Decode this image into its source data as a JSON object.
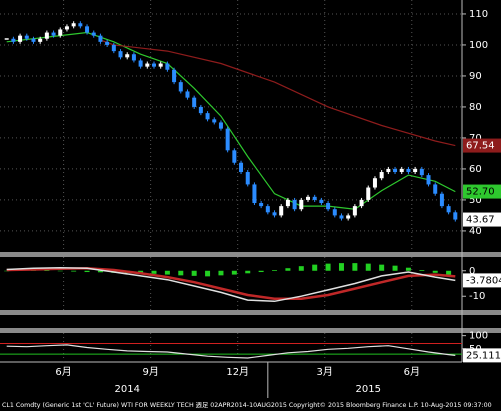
{
  "chart_data": [
    {
      "type": "candlestick",
      "values": [
        102,
        101,
        103,
        102,
        101,
        102,
        104,
        103,
        105,
        106,
        107,
        106,
        104,
        103,
        101,
        100,
        98,
        96,
        97,
        95,
        93,
        94,
        93,
        94,
        92,
        88,
        85,
        83,
        80,
        78,
        76,
        75,
        73,
        66,
        62,
        59,
        55,
        49,
        48,
        46,
        45,
        48,
        50,
        47,
        50,
        51,
        50,
        49,
        47,
        45,
        44,
        45,
        48,
        50,
        54,
        57,
        59,
        60,
        59,
        60,
        59,
        60,
        58,
        55,
        52,
        48,
        46,
        43.67
      ],
      "up_color": "#ffffff",
      "down_color": "#2b8cff",
      "lines": [
        {
          "color": "#2ec82e",
          "x": [
            0,
            4,
            8,
            12,
            16,
            20,
            24,
            28,
            32,
            36,
            40,
            44,
            48,
            52,
            56,
            60,
            64,
            67
          ],
          "values": [
            101,
            102,
            103,
            104,
            101,
            97,
            94,
            86,
            77,
            64,
            52,
            48,
            48,
            47,
            53,
            58,
            56,
            52.7
          ],
          "value_labels": [
            null,
            null,
            null,
            null,
            null,
            null,
            null,
            null,
            null,
            null,
            null,
            null,
            null,
            null,
            null,
            null,
            null,
            "52.70"
          ]
        },
        {
          "color": "#8e1c1c",
          "x": [
            14,
            16,
            24,
            32,
            40,
            48,
            56,
            64,
            67
          ],
          "values": [
            101.6,
            100,
            98,
            94,
            88,
            80,
            74,
            69,
            67.54
          ]
        }
      ],
      "ylim": [
        33.2,
        114.5
      ],
      "yticks": [
        40,
        50,
        60,
        70,
        80,
        90,
        100,
        110
      ],
      "grid": true
    },
    {
      "type": "macd",
      "histogram": {
        "color": "#22d022",
        "x": [
          0,
          2,
          4,
          6,
          8,
          10,
          12,
          14,
          16,
          18,
          20,
          22,
          24,
          26,
          28,
          30,
          32,
          34,
          36,
          38,
          40,
          42,
          44,
          46,
          48,
          50,
          52,
          54,
          56,
          58,
          60,
          62,
          64,
          66
        ],
        "values": [
          0,
          0.3,
          0.2,
          0.1,
          -0.1,
          -0.3,
          -0.5,
          -0.6,
          -0.8,
          -0.9,
          -1,
          -1.2,
          -1.5,
          -1.8,
          -2,
          -2.2,
          -1.8,
          -1.5,
          -1,
          -0.5,
          0.3,
          1,
          1.8,
          2.4,
          2.8,
          3,
          3,
          2.8,
          2.4,
          2,
          1.2,
          0.3,
          -0.8,
          -1.6
        ]
      },
      "lines": [
        {
          "color": "#c02828",
          "x": [
            0,
            4,
            8,
            12,
            16,
            20,
            24,
            28,
            32,
            36,
            40,
            44,
            48,
            52,
            56,
            60,
            64,
            67
          ],
          "values": [
            0.3,
            0.5,
            0.8,
            1,
            0.3,
            -1,
            -2.5,
            -4.5,
            -7,
            -9.5,
            -11,
            -11,
            -9.5,
            -7,
            -4.5,
            -2,
            -1.5,
            -2.2
          ]
        },
        {
          "color": "#e0e0e0",
          "x": [
            0,
            4,
            8,
            12,
            16,
            20,
            24,
            28,
            32,
            36,
            40,
            44,
            48,
            52,
            56,
            60,
            64,
            67
          ],
          "values": [
            0.5,
            1,
            1.2,
            1,
            -0.5,
            -2,
            -3.5,
            -6,
            -8.5,
            -11.5,
            -12,
            -10,
            -7.5,
            -5,
            -2,
            -0.5,
            -2.5,
            -3.7804
          ]
        }
      ],
      "ylim": [
        -15.4,
        5.4
      ],
      "yticks": [
        0,
        -10
      ]
    },
    {
      "type": "rsi",
      "line": {
        "color": "#e0e0e0",
        "x": [
          0,
          3,
          6,
          9,
          12,
          15,
          18,
          21,
          24,
          27,
          30,
          33,
          36,
          39,
          42,
          45,
          48,
          51,
          54,
          57,
          60,
          63,
          66,
          67
        ],
        "values": [
          60,
          58,
          62,
          65,
          55,
          48,
          42,
          40,
          38,
          30,
          22,
          18,
          15,
          25,
          35,
          40,
          48,
          52,
          58,
          62,
          50,
          38,
          28,
          25.1119
        ]
      },
      "levels": [
        {
          "value": 70,
          "color": "#d02020"
        },
        {
          "value": 30,
          "color": "#20c020"
        }
      ],
      "ylim": [
        0,
        110
      ],
      "yticks": [
        100,
        50
      ]
    }
  ],
  "time_axis": {
    "xlim": [
      -1,
      68
    ],
    "xticks": [
      {
        "value": 8.5,
        "label": "6月"
      },
      {
        "value": 21.5,
        "label": "9月"
      },
      {
        "value": 34.5,
        "label": "12月"
      },
      {
        "value": 47.5,
        "label": "3月"
      },
      {
        "value": 60.5,
        "label": "6月"
      }
    ],
    "year_ticks": [
      {
        "value": 18,
        "label": "2014"
      },
      {
        "value": 54,
        "label": "2015"
      }
    ],
    "year_divider": 39
  },
  "footer": "CL1 Comdty (Generic 1st 'CL' Future) WTI FOR WEEKLY TECH 週足 02APR2014-10AUG2015 Copyright© 2015 Bloomberg Finance L.P. 10-Aug-2015 09:37:00"
}
